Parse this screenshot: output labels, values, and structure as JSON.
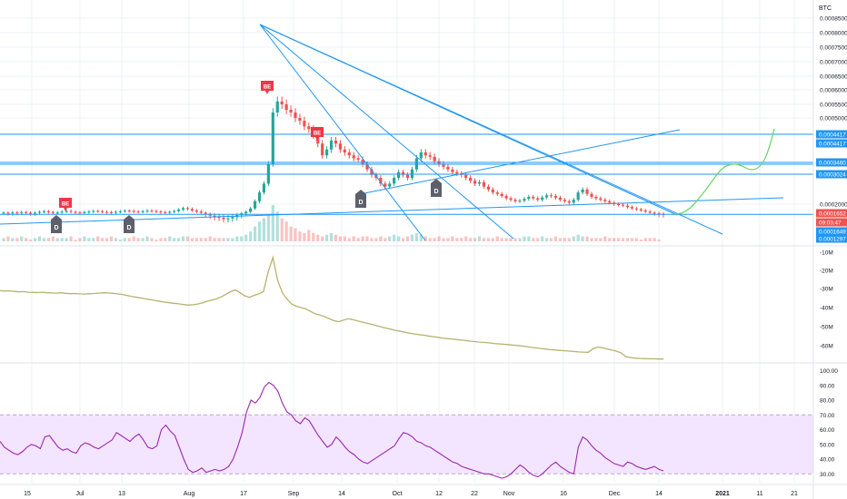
{
  "colors": {
    "up": "#26a69a",
    "down": "#ef5350",
    "drawing": "#2196f3",
    "forecast": "#66d466",
    "obv": "#b5b36f",
    "rsi": "#9c27b0",
    "rsi_band": "#f3e5ff",
    "axis_text": "#131722",
    "grid": "#eef0f4",
    "marker_d": "#5d606b",
    "marker_be": "#f23645"
  },
  "chart_data": [
    {
      "type": "candlestick",
      "currency": "BTC",
      "y_ticks": [
        "0.0008500",
        "0.0008000",
        "0.0007500",
        "0.0007000",
        "0.0006500",
        "0.0006000",
        "0.0005500",
        "0.0005000",
        "0.0002000"
      ],
      "ylim": [
        0.00012,
        0.00087
      ],
      "horizontal_levels": [
        0.0004417,
        0.000346,
        0.0003024,
        0.0001649
      ],
      "price_labels": [
        {
          "text": "0.0004417",
          "color": "#2196f3",
          "value": 0.0004417
        },
        {
          "text": "0.0004417",
          "color": "#2196f3",
          "value": 0.0004417
        },
        {
          "text": "0.0003460",
          "color": "#2196f3",
          "value": 0.000346
        },
        {
          "text": "0.0003024",
          "color": "#2196f3",
          "value": 0.0003024
        },
        {
          "text": "0.0001652",
          "color": "#ef5350",
          "value": 0.0001652
        },
        {
          "text": "09:03:47",
          "color": "#ef5350",
          "value": 0.0001652
        },
        {
          "text": "0.0001649",
          "color": "#2196f3",
          "value": 0.0001649
        },
        {
          "text": "0.0001297",
          "color": "#2196f3",
          "value": 0.0001297
        }
      ],
      "close_series": [
        0.00017,
        0.000168,
        0.000171,
        0.000169,
        0.000172,
        0.00017,
        0.000168,
        0.00017,
        0.000173,
        0.000175,
        0.000172,
        0.00017,
        0.000171,
        0.000174,
        0.000176,
        0.000173,
        0.000171,
        0.00017,
        0.000172,
        0.000174,
        0.000176,
        0.000175,
        0.000173,
        0.000172,
        0.000171,
        0.000173,
        0.000175,
        0.000177,
        0.000176,
        0.000174,
        0.000173,
        0.000175,
        0.000177,
        0.000176,
        0.000174,
        0.000172,
        0.000171,
        0.000173,
        0.000176,
        0.000181,
        0.000186,
        0.000183,
        0.000178,
        0.000174,
        0.00017,
        0.000166,
        0.000163,
        0.000161,
        0.00016,
        0.000158,
        0.000159,
        0.000161,
        0.000164,
        0.000168,
        0.000173,
        0.000185,
        0.00021,
        0.00024,
        0.00027,
        0.00034,
        0.00052,
        0.00056,
        0.00055,
        0.00053,
        0.00052,
        0.0005,
        0.00049,
        0.00047,
        0.00046,
        0.00044,
        0.00041,
        0.00037,
        0.00039,
        0.00042,
        0.00041,
        0.00039,
        0.00038,
        0.00037,
        0.00036,
        0.000355,
        0.00034,
        0.00032,
        0.0003,
        0.00029,
        0.00027,
        0.00026,
        0.00027,
        0.00029,
        0.00031,
        0.0003,
        0.00029,
        0.00032,
        0.00036,
        0.00038,
        0.00037,
        0.000365,
        0.00035,
        0.00034,
        0.00033,
        0.00032,
        0.00031,
        0.000305,
        0.0003,
        0.00029,
        0.00028,
        0.00027,
        0.000275,
        0.00026,
        0.00025,
        0.00024,
        0.000235,
        0.000228,
        0.00022,
        0.000215,
        0.00021,
        0.000212,
        0.000218,
        0.000225,
        0.00022,
        0.000215,
        0.000223,
        0.00023,
        0.000228,
        0.000222,
        0.000215,
        0.00021,
        0.000205,
        0.000215,
        0.00024,
        0.00025,
        0.000235,
        0.000225,
        0.00022,
        0.000215,
        0.00021,
        0.000205,
        0.0002,
        0.000198,
        0.000195,
        0.00019,
        0.000185,
        0.000182,
        0.000178,
        0.000174,
        0.00017,
        0.000168,
        0.000166,
        0.0001652
      ],
      "volume_series": [
        2,
        3,
        2,
        2,
        3,
        2,
        1,
        2,
        3,
        2,
        2,
        3,
        2,
        2,
        2,
        3,
        1,
        2,
        3,
        2,
        2,
        3,
        2,
        2,
        3,
        2,
        1,
        2,
        2,
        3,
        2,
        2,
        3,
        2,
        1,
        2,
        2,
        3,
        2,
        2,
        3,
        3,
        2,
        2,
        2,
        2,
        3,
        2,
        2,
        2,
        2,
        2,
        3,
        3,
        4,
        6,
        9,
        12,
        14,
        16,
        22,
        18,
        14,
        12,
        9,
        8,
        6,
        5,
        7,
        5,
        4,
        3,
        4,
        5,
        4,
        3,
        3,
        2,
        3,
        2,
        3,
        3,
        2,
        2,
        3,
        2,
        3,
        4,
        3,
        2,
        3,
        4,
        5,
        4,
        3,
        2,
        2,
        3,
        2,
        2,
        3,
        2,
        2,
        3,
        2,
        2,
        3,
        2,
        2,
        2,
        3,
        2,
        2,
        2,
        2,
        2,
        3,
        3,
        2,
        2,
        3,
        2,
        2,
        3,
        2,
        2,
        2,
        3,
        4,
        3,
        3,
        2,
        2,
        2,
        3,
        2,
        2,
        2,
        2,
        2,
        2,
        2,
        1,
        2,
        2,
        2,
        1
      ]
    },
    {
      "type": "line",
      "y_ticks": [
        "-10M",
        "-20M",
        "-30M",
        "-40M",
        "-50M",
        "-60M"
      ],
      "ylim": [
        -66,
        -8
      ],
      "values": [
        -28.5,
        -28.7,
        -28.6,
        -28.9,
        -29.1,
        -29.0,
        -29.3,
        -29.4,
        -29.5,
        -29.3,
        -29.6,
        -29.7,
        -29.8,
        -29.6,
        -29.9,
        -30.1,
        -30.0,
        -30.2,
        -30.3,
        -30.1,
        -30.0,
        -29.8,
        -29.6,
        -29.7,
        -29.9,
        -30.2,
        -30.5,
        -31.0,
        -31.6,
        -32.0,
        -32.4,
        -32.9,
        -33.3,
        -33.8,
        -34.2,
        -34.6,
        -34.9,
        -35.2,
        -35.5,
        -35.9,
        -36.2,
        -36.0,
        -35.6,
        -35.0,
        -34.1,
        -33.5,
        -32.9,
        -31.8,
        -30.5,
        -29.0,
        -28.1,
        -29.5,
        -31.2,
        -32.0,
        -31.0,
        -30.2,
        -29.0,
        -18.5,
        -10.8,
        -23.0,
        -29.5,
        -33.0,
        -35.6,
        -36.8,
        -37.5,
        -38.2,
        -39.5,
        -40.8,
        -41.5,
        -42.3,
        -43.5,
        -44.5,
        -45.0,
        -44.2,
        -43.5,
        -43.9,
        -44.6,
        -45.2,
        -45.8,
        -46.4,
        -47.1,
        -47.8,
        -48.4,
        -49.0,
        -49.6,
        -50.1,
        -50.6,
        -51.1,
        -51.5,
        -51.9,
        -52.2,
        -52.6,
        -53.0,
        -53.3,
        -53.7,
        -54.0,
        -54.2,
        -54.5,
        -54.8,
        -55.1,
        -55.4,
        -55.6,
        -55.9,
        -56.1,
        -56.3,
        -56.6,
        -56.8,
        -57.0,
        -57.2,
        -57.5,
        -57.7,
        -58.0,
        -58.3,
        -58.7,
        -59.0,
        -59.3,
        -59.6,
        -59.9,
        -60.1,
        -60.3,
        -60.5,
        -60.7,
        -60.9,
        -61.1,
        -61.2,
        -61.3,
        -59.5,
        -58.5,
        -58.9,
        -59.5,
        -60.1,
        -60.7,
        -61.6,
        -63.6,
        -64.1,
        -64.4,
        -64.6,
        -64.7,
        -64.8,
        -64.8,
        -64.9,
        -64.9
      ]
    },
    {
      "type": "line",
      "y_ticks": [
        "100.00",
        "90.00",
        "80.00",
        "70.00",
        "60.00",
        "50.00",
        "40.00",
        "30.00"
      ],
      "ylim": [
        24,
        104
      ],
      "band": [
        30,
        70
      ],
      "values": [
        52,
        48,
        46,
        44,
        43,
        45,
        48,
        50,
        49,
        47,
        55,
        56,
        52,
        48,
        46,
        47,
        45,
        44,
        49,
        51,
        50,
        48,
        47,
        49,
        51,
        53,
        58,
        56,
        54,
        52,
        55,
        57,
        53,
        48,
        47,
        49,
        60,
        63,
        59,
        56,
        48,
        40,
        33,
        31,
        32,
        34,
        31,
        32,
        33,
        32,
        33,
        35,
        40,
        48,
        58,
        72,
        80,
        78,
        82,
        89,
        92,
        90,
        86,
        78,
        72,
        70,
        66,
        64,
        68,
        66,
        61,
        56,
        52,
        48,
        50,
        55,
        52,
        48,
        45,
        43,
        40,
        38,
        37,
        39,
        41,
        43,
        45,
        47,
        49,
        54,
        58,
        57,
        55,
        52,
        51,
        49,
        48,
        46,
        44,
        42,
        40,
        38,
        37,
        35,
        34,
        33,
        32,
        31,
        30,
        30,
        29,
        28,
        27,
        28,
        30,
        33,
        36,
        34,
        31,
        29,
        28,
        30,
        33,
        36,
        38,
        35,
        33,
        31,
        30,
        48,
        55,
        53,
        49,
        46,
        44,
        41,
        39,
        37,
        36,
        35,
        38,
        37,
        35,
        34,
        33,
        34,
        35,
        33,
        32
      ]
    }
  ],
  "markers": [
    {
      "label": "D"
    },
    {
      "label": "D"
    },
    {
      "label": "D"
    },
    {
      "label": "D"
    },
    {
      "label": "BE"
    },
    {
      "label": "BE"
    },
    {
      "label": "BE"
    }
  ],
  "x_axis": {
    "ticks": [
      "15",
      "Jul",
      "13",
      "Aug",
      "17",
      "Sep",
      "14",
      "Oct",
      "12",
      "22",
      "Nov",
      "16",
      "Dec",
      "14",
      "2021",
      "11",
      "21"
    ]
  }
}
